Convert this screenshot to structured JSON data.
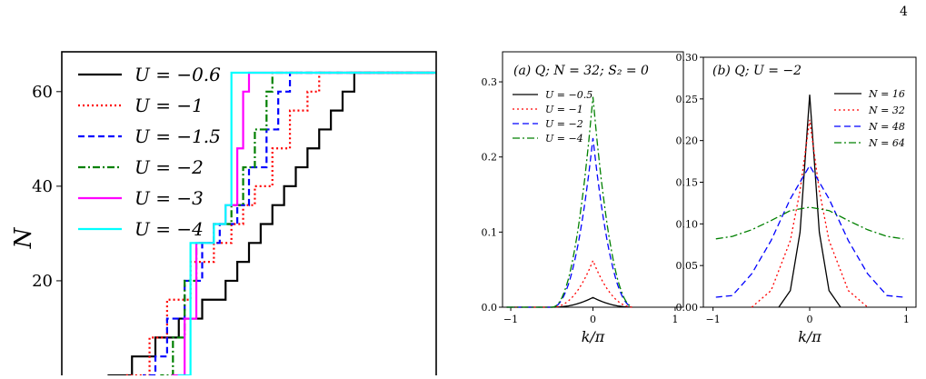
{
  "page": {
    "number": "4"
  },
  "chart_data": [
    {
      "id": "left",
      "type": "line",
      "title": "",
      "xlabel": "",
      "ylabel": "N",
      "ylim": [
        0,
        66
      ],
      "yticks": [
        20,
        40,
        60
      ],
      "legend_placement": "top-left",
      "series": [
        {
          "name": "U = −0.6",
          "color": "#000000",
          "style": "solid",
          "steps": [
            [
              8,
              0
            ],
            [
              12,
              4
            ],
            [
              16,
              8
            ],
            [
              20,
              12
            ],
            [
              24,
              16
            ],
            [
              28,
              20
            ],
            [
              30,
              24
            ],
            [
              32,
              28
            ],
            [
              34,
              32
            ],
            [
              36,
              36
            ],
            [
              38,
              40
            ],
            [
              40,
              44
            ],
            [
              42,
              48
            ],
            [
              44,
              52
            ],
            [
              46,
              56
            ],
            [
              48,
              60
            ],
            [
              50,
              64
            ],
            [
              64,
              64
            ]
          ]
        },
        {
          "name": "U = −1",
          "color": "#ff0000",
          "style": "dotted",
          "steps": [
            [
              11,
              0
            ],
            [
              15,
              8
            ],
            [
              18,
              16
            ],
            [
              22,
              24
            ],
            [
              26,
              28
            ],
            [
              29,
              32
            ],
            [
              31,
              36
            ],
            [
              33,
              40
            ],
            [
              36,
              48
            ],
            [
              39,
              56
            ],
            [
              42,
              60
            ],
            [
              44,
              64
            ],
            [
              64,
              64
            ]
          ]
        },
        {
          "name": "U = −1.5",
          "color": "#0000ff",
          "style": "dashed",
          "steps": [
            [
              14,
              0
            ],
            [
              16,
              4
            ],
            [
              18,
              12
            ],
            [
              21,
              20
            ],
            [
              24,
              28
            ],
            [
              27,
              32
            ],
            [
              30,
              36
            ],
            [
              32,
              44
            ],
            [
              35,
              52
            ],
            [
              37,
              60
            ],
            [
              39,
              64
            ],
            [
              64,
              64
            ]
          ]
        },
        {
          "name": "U = −2",
          "color": "#008000",
          "style": "dashdot",
          "steps": [
            [
              17,
              0
            ],
            [
              19,
              8
            ],
            [
              21,
              20
            ],
            [
              23,
              28
            ],
            [
              26,
              32
            ],
            [
              29,
              36
            ],
            [
              31,
              44
            ],
            [
              33,
              52
            ],
            [
              35,
              60
            ],
            [
              36,
              64
            ],
            [
              64,
              64
            ]
          ]
        },
        {
          "name": "U = −3",
          "color": "#ff00ff",
          "style": "solid",
          "steps": [
            [
              19,
              0
            ],
            [
              21,
              12
            ],
            [
              23,
              28
            ],
            [
              26,
              32
            ],
            [
              28,
              36
            ],
            [
              30,
              48
            ],
            [
              31,
              60
            ],
            [
              32,
              64
            ],
            [
              64,
              64
            ]
          ]
        },
        {
          "name": "U = −4",
          "color": "#00ffff",
          "style": "solid",
          "steps": [
            [
              20,
              0
            ],
            [
              22,
              28
            ],
            [
              26,
              32
            ],
            [
              28,
              36
            ],
            [
              29,
              64
            ],
            [
              64,
              64
            ]
          ]
        }
      ]
    },
    {
      "id": "a",
      "type": "line",
      "title": "(a) Q; N = 32; S_z = 0",
      "xlabel": "k/π",
      "ylabel": "",
      "xlim": [
        -1.1,
        1.1
      ],
      "ylim": [
        0,
        0.34
      ],
      "xticks": [
        "−1",
        "0",
        "1"
      ],
      "yticks": [
        "0.0",
        "0.1",
        "0.2",
        "0.3"
      ],
      "legend_placement": "top-left",
      "series": [
        {
          "name": "U = −0.5",
          "color": "#000000",
          "style": "solid",
          "peak": 0.013,
          "width": 0.5
        },
        {
          "name": "U = −1",
          "color": "#ff0000",
          "style": "dotted",
          "peak": 0.062,
          "width": 0.5
        },
        {
          "name": "U = −2",
          "color": "#0000ff",
          "style": "dashed",
          "peak": 0.225,
          "width": 0.5
        },
        {
          "name": "U = −4",
          "color": "#008000",
          "style": "dashdot",
          "peak": 0.28,
          "width": 0.5
        }
      ]
    },
    {
      "id": "b",
      "type": "line",
      "title": "(b) Q; U = −2",
      "xlabel": "k/π",
      "ylabel": "",
      "xlim": [
        -1.1,
        1.1
      ],
      "ylim": [
        0,
        0.3
      ],
      "xticks": [
        "−1",
        "0",
        "1"
      ],
      "yticks": [
        "0.00",
        "0.05",
        "0.10",
        "0.15",
        "0.20",
        "0.25",
        "0.30"
      ],
      "legend_placement": "top-right",
      "series": [
        {
          "name": "N = 16",
          "color": "#000000",
          "style": "solid",
          "points": [
            [
              -0.32,
              0
            ],
            [
              -0.2,
              0.02
            ],
            [
              -0.1,
              0.09
            ],
            [
              0,
              0.255
            ],
            [
              0.1,
              0.09
            ],
            [
              0.2,
              0.02
            ],
            [
              0.32,
              0
            ]
          ]
        },
        {
          "name": "N = 32",
          "color": "#ff0000",
          "style": "dotted",
          "points": [
            [
              -0.6,
              0
            ],
            [
              -0.4,
              0.02
            ],
            [
              -0.2,
              0.08
            ],
            [
              -0.1,
              0.14
            ],
            [
              0,
              0.225
            ],
            [
              0.1,
              0.14
            ],
            [
              0.2,
              0.08
            ],
            [
              0.4,
              0.02
            ],
            [
              0.6,
              0
            ]
          ]
        },
        {
          "name": "N = 48",
          "color": "#0000ff",
          "style": "dashed",
          "points": [
            [
              -0.97,
              0.012
            ],
            [
              -0.8,
              0.014
            ],
            [
              -0.6,
              0.04
            ],
            [
              -0.4,
              0.08
            ],
            [
              -0.2,
              0.13
            ],
            [
              0,
              0.17
            ],
            [
              0.2,
              0.13
            ],
            [
              0.4,
              0.08
            ],
            [
              0.6,
              0.04
            ],
            [
              0.8,
              0.014
            ],
            [
              0.97,
              0.012
            ]
          ]
        },
        {
          "name": "N = 64",
          "color": "#008000",
          "style": "dashdot",
          "points": [
            [
              -0.97,
              0.082
            ],
            [
              -0.8,
              0.085
            ],
            [
              -0.6,
              0.093
            ],
            [
              -0.4,
              0.104
            ],
            [
              -0.2,
              0.116
            ],
            [
              0,
              0.12
            ],
            [
              0.2,
              0.116
            ],
            [
              0.4,
              0.104
            ],
            [
              0.6,
              0.093
            ],
            [
              0.8,
              0.085
            ],
            [
              0.97,
              0.082
            ]
          ]
        }
      ]
    }
  ]
}
